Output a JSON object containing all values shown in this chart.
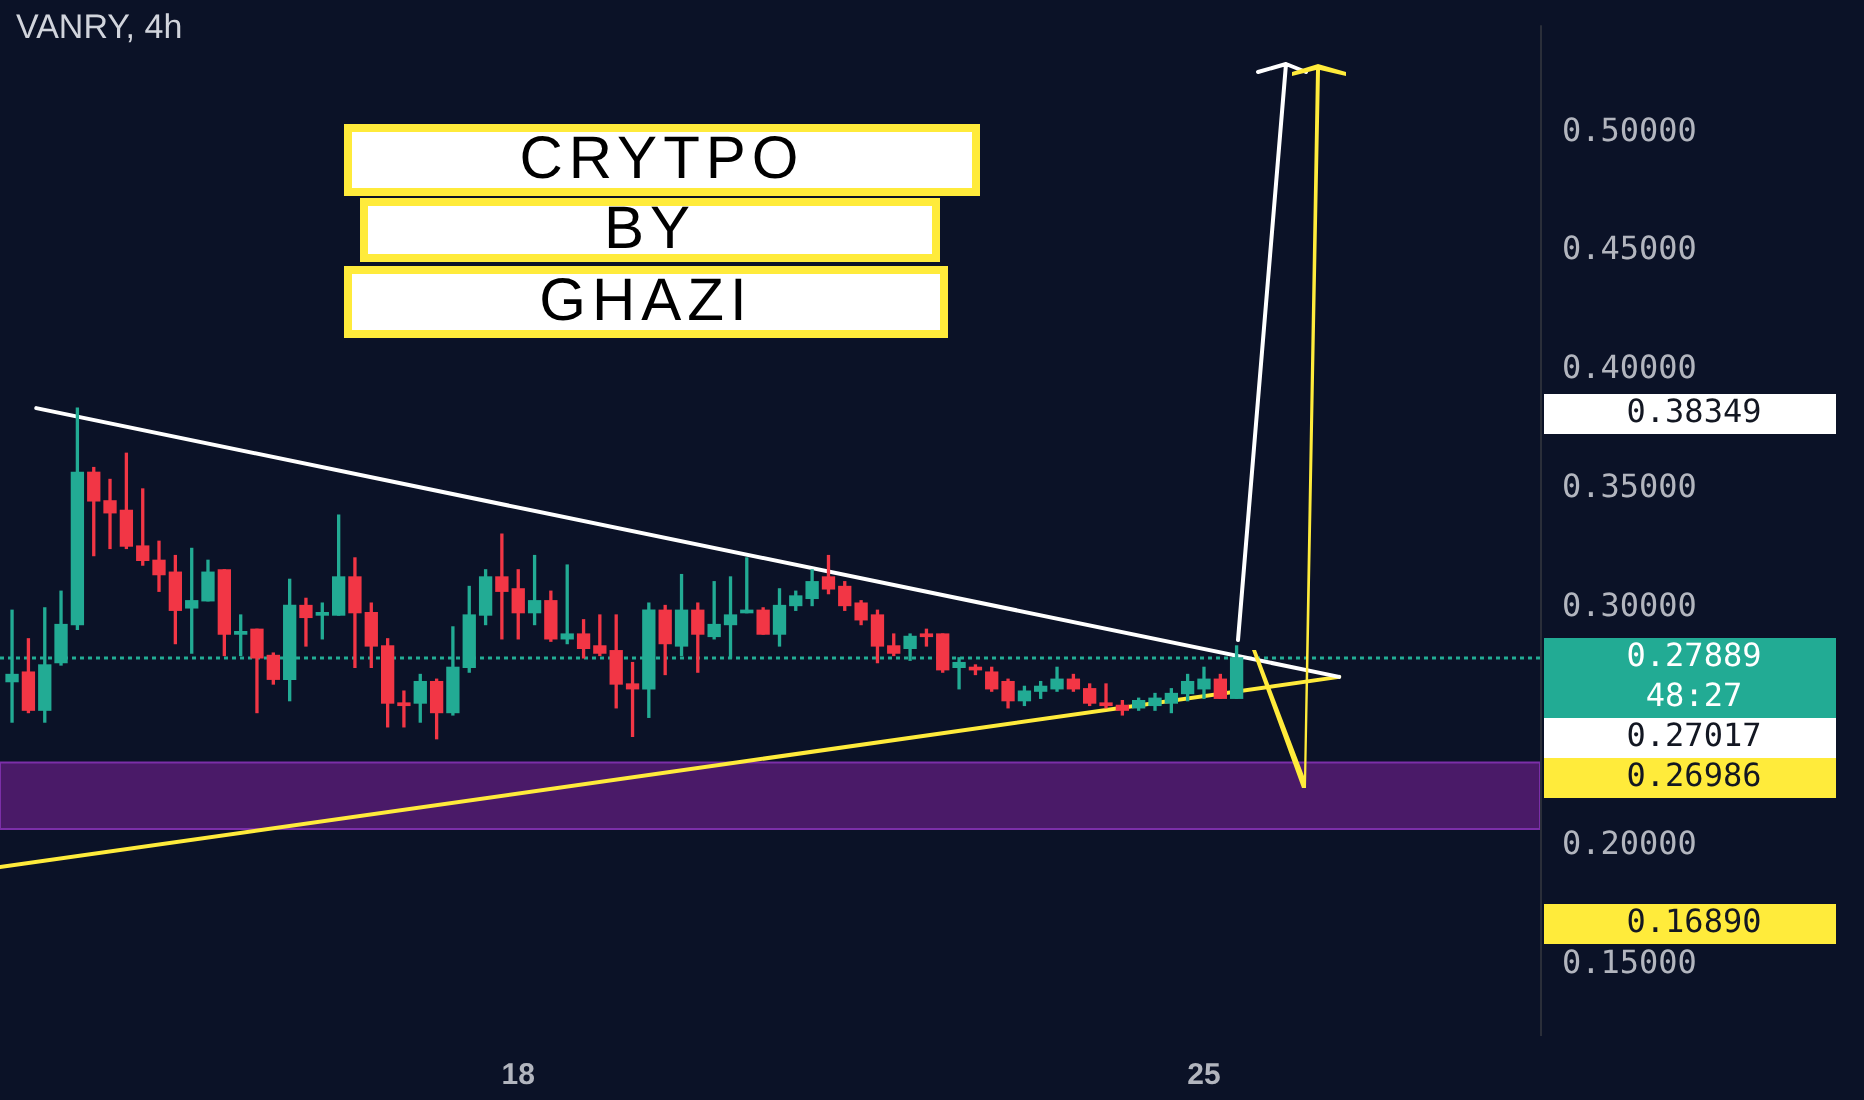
{
  "chart_data": {
    "type": "candlestick",
    "title": "VANRY, 4h",
    "annotations": [
      "CRYTPO",
      "BY",
      "GHAZI",
      "0.38349",
      "0.27017",
      "0.26986",
      "0.16890"
    ],
    "x": [
      12.833,
      13,
      13.167,
      13.333,
      13.5,
      13.667,
      13.833,
      14,
      14.167,
      14.333,
      14.5,
      14.667,
      14.833,
      15,
      15.167,
      15.333,
      15.5,
      15.667,
      15.833,
      16,
      16.167,
      16.333,
      16.5,
      16.667,
      16.833,
      17,
      17.167,
      17.333,
      17.5,
      17.667,
      17.833,
      18,
      18.167,
      18.333,
      18.5,
      18.667,
      18.833,
      19,
      19.167,
      19.333,
      19.5,
      19.667,
      19.833,
      20,
      20.167,
      20.333,
      20.5,
      20.667,
      20.833,
      21,
      21.167,
      21.333,
      21.5,
      21.667,
      21.833,
      22,
      22.167,
      22.333,
      22.5,
      22.667,
      22.833,
      23,
      23.167,
      23.333,
      23.5,
      23.667,
      23.833,
      24,
      24.167,
      24.333,
      24.5,
      24.667,
      24.833,
      25,
      25.167,
      25.333
    ],
    "ohlc": [
      [
        0.269,
        0.299,
        0.252,
        0.272
      ],
      [
        0.273,
        0.287,
        0.256,
        0.257
      ],
      [
        0.257,
        0.3,
        0.252,
        0.276
      ],
      [
        0.277,
        0.307,
        0.276,
        0.293
      ],
      [
        0.293,
        0.384,
        0.291,
        0.357
      ],
      [
        0.357,
        0.359,
        0.322,
        0.345
      ],
      [
        0.345,
        0.354,
        0.325,
        0.34
      ],
      [
        0.341,
        0.365,
        0.325,
        0.326
      ],
      [
        0.326,
        0.35,
        0.318,
        0.32
      ],
      [
        0.32,
        0.328,
        0.307,
        0.314
      ],
      [
        0.315,
        0.322,
        0.285,
        0.299
      ],
      [
        0.3,
        0.325,
        0.281,
        0.303
      ],
      [
        0.303,
        0.32,
        0.303,
        0.315
      ],
      [
        0.316,
        0.316,
        0.28,
        0.289
      ],
      [
        0.289,
        0.297,
        0.28,
        0.29
      ],
      [
        0.291,
        0.291,
        0.256,
        0.279
      ],
      [
        0.28,
        0.281,
        0.268,
        0.27
      ],
      [
        0.27,
        0.312,
        0.261,
        0.301
      ],
      [
        0.301,
        0.304,
        0.284,
        0.296
      ],
      [
        0.297,
        0.302,
        0.287,
        0.298
      ],
      [
        0.297,
        0.339,
        0.297,
        0.313
      ],
      [
        0.313,
        0.321,
        0.275,
        0.298
      ],
      [
        0.298,
        0.302,
        0.275,
        0.284
      ],
      [
        0.284,
        0.287,
        0.25,
        0.26
      ],
      [
        0.26,
        0.265,
        0.25,
        0.259
      ],
      [
        0.26,
        0.272,
        0.252,
        0.269
      ],
      [
        0.269,
        0.27,
        0.245,
        0.256
      ],
      [
        0.256,
        0.292,
        0.255,
        0.275
      ],
      [
        0.275,
        0.309,
        0.273,
        0.297
      ],
      [
        0.297,
        0.316,
        0.293,
        0.313
      ],
      [
        0.313,
        0.331,
        0.287,
        0.307
      ],
      [
        0.308,
        0.316,
        0.287,
        0.298
      ],
      [
        0.298,
        0.322,
        0.293,
        0.303
      ],
      [
        0.303,
        0.307,
        0.286,
        0.287
      ],
      [
        0.287,
        0.318,
        0.285,
        0.289
      ],
      [
        0.289,
        0.295,
        0.279,
        0.283
      ],
      [
        0.284,
        0.297,
        0.28,
        0.281
      ],
      [
        0.282,
        0.297,
        0.258,
        0.268
      ],
      [
        0.268,
        0.277,
        0.246,
        0.266
      ],
      [
        0.266,
        0.302,
        0.254,
        0.299
      ],
      [
        0.299,
        0.301,
        0.272,
        0.285
      ],
      [
        0.284,
        0.314,
        0.28,
        0.299
      ],
      [
        0.299,
        0.302,
        0.273,
        0.289
      ],
      [
        0.288,
        0.311,
        0.287,
        0.293
      ],
      [
        0.293,
        0.313,
        0.279,
        0.297
      ],
      [
        0.298,
        0.321,
        0.298,
        0.299
      ],
      [
        0.299,
        0.3,
        0.289,
        0.289
      ],
      [
        0.289,
        0.308,
        0.284,
        0.301
      ],
      [
        0.301,
        0.307,
        0.299,
        0.305
      ],
      [
        0.304,
        0.316,
        0.301,
        0.311
      ],
      [
        0.313,
        0.322,
        0.306,
        0.308
      ],
      [
        0.309,
        0.311,
        0.299,
        0.301
      ],
      [
        0.302,
        0.303,
        0.293,
        0.295
      ],
      [
        0.297,
        0.299,
        0.277,
        0.284
      ],
      [
        0.284,
        0.289,
        0.28,
        0.281
      ],
      [
        0.283,
        0.289,
        0.278,
        0.288
      ],
      [
        0.289,
        0.291,
        0.284,
        0.288
      ],
      [
        0.289,
        0.289,
        0.273,
        0.274
      ],
      [
        0.275,
        0.279,
        0.266,
        0.277
      ],
      [
        0.275,
        0.276,
        0.272,
        0.274
      ],
      [
        0.273,
        0.275,
        0.265,
        0.266
      ],
      [
        0.269,
        0.27,
        0.258,
        0.261
      ],
      [
        0.261,
        0.267,
        0.259,
        0.265
      ],
      [
        0.265,
        0.269,
        0.262,
        0.267
      ],
      [
        0.266,
        0.275,
        0.265,
        0.27
      ],
      [
        0.27,
        0.272,
        0.265,
        0.266
      ],
      [
        0.266,
        0.268,
        0.259,
        0.26
      ],
      [
        0.26,
        0.268,
        0.258,
        0.259
      ],
      [
        0.259,
        0.261,
        0.255,
        0.257
      ],
      [
        0.258,
        0.262,
        0.257,
        0.261
      ],
      [
        0.259,
        0.264,
        0.257,
        0.262
      ],
      [
        0.26,
        0.266,
        0.256,
        0.264
      ],
      [
        0.264,
        0.272,
        0.261,
        0.269
      ],
      [
        0.266,
        0.275,
        0.262,
        0.27
      ],
      [
        0.27,
        0.272,
        0.262,
        0.262
      ],
      [
        0.262,
        0.284,
        0.262,
        0.279
      ]
    ],
    "colors": [
      "#22ab94",
      "#f23645",
      "#22ab94",
      "#22ab94",
      "#22ab94",
      "#f23645",
      "#f23645",
      "#f23645",
      "#f23645",
      "#f23645",
      "#f23645",
      "#22ab94",
      "#22ab94",
      "#f23645",
      "#22ab94",
      "#f23645",
      "#f23645",
      "#22ab94",
      "#f23645",
      "#22ab94",
      "#22ab94",
      "#f23645",
      "#f23645",
      "#f23645",
      "#f23645",
      "#22ab94",
      "#f23645",
      "#22ab94",
      "#22ab94",
      "#22ab94",
      "#f23645",
      "#f23645",
      "#22ab94",
      "#f23645",
      "#22ab94",
      "#f23645",
      "#f23645",
      "#f23645",
      "#f23645",
      "#22ab94",
      "#f23645",
      "#22ab94",
      "#f23645",
      "#22ab94",
      "#22ab94",
      "#22ab94",
      "#f23645",
      "#22ab94",
      "#22ab94",
      "#22ab94",
      "#f23645",
      "#f23645",
      "#f23645",
      "#f23645",
      "#f23645",
      "#22ab94",
      "#f23645",
      "#f23645",
      "#22ab94",
      "#f23645",
      "#f23645",
      "#f23645",
      "#22ab94",
      "#22ab94",
      "#22ab94",
      "#f23645",
      "#f23645",
      "#f23645",
      "#f23645",
      "#22ab94",
      "#22ab94",
      "#22ab94",
      "#22ab94",
      "#22ab94",
      "#f23645",
      "#22ab94"
    ],
    "series": [
      {
        "type": "line",
        "color": "#ffffff",
        "x": [
          13.08,
          26.38
        ],
        "values": [
          0.384,
          0.271
        ]
      },
      {
        "type": "line",
        "color": "#ffeb3b",
        "x": [
          12.71,
          26.38
        ],
        "values": [
          0.191,
          0.271
        ]
      }
    ],
    "bands": [
      {
        "axis": "y",
        "from": 0.207,
        "to": 0.235,
        "color": "#4a1a68"
      }
    ],
    "ref_lines": [
      {
        "axis": "y",
        "value": 0.27889,
        "label": "0.27889\n48:27",
        "color": "#22ab94",
        "line_style": "dotted"
      }
    ],
    "xlim": [
      12.71,
      28.43
    ],
    "xticks": [
      18,
      25
    ],
    "ylim": [
      0.12,
      0.545
    ],
    "yticks": [
      {
        "value": 0.15,
        "label": "0.15000"
      },
      {
        "value": 0.2,
        "label": "0.20000"
      },
      {
        "value": 0.3,
        "label": "0.30000"
      },
      {
        "value": 0.35,
        "label": "0.35000"
      },
      {
        "value": 0.4,
        "label": "0.40000"
      },
      {
        "value": 0.45,
        "label": "0.45000"
      },
      {
        "value": 0.5,
        "label": "0.50000"
      }
    ]
  }
}
